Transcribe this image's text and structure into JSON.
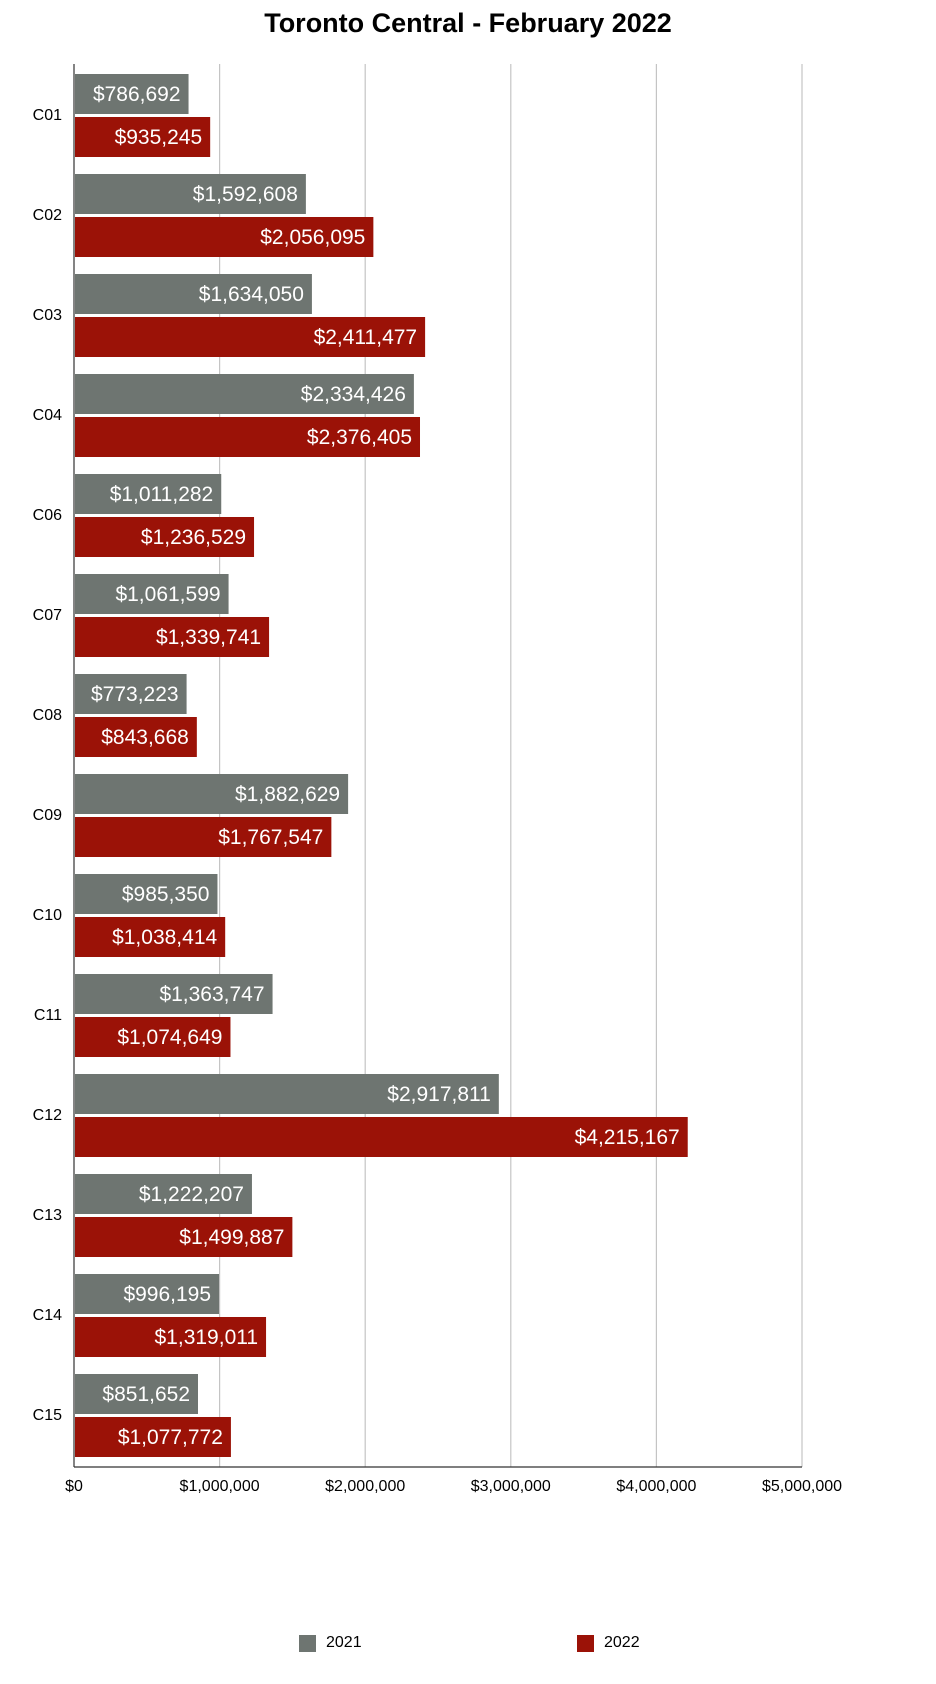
{
  "chart_data": {
    "type": "bar",
    "orientation": "horizontal",
    "title": "Toronto Central - February 2022",
    "xlabel": "",
    "ylabel": "",
    "xlim": [
      0,
      5000000
    ],
    "x_ticks": [
      "$0",
      "$1,000,000",
      "$2,000,000",
      "$3,000,000",
      "$4,000,000",
      "$5,000,000"
    ],
    "grid": true,
    "legend_position": "bottom",
    "categories": [
      "C01",
      "C02",
      "C03",
      "C04",
      "C06",
      "C07",
      "C08",
      "C09",
      "C10",
      "C11",
      "C12",
      "C13",
      "C14",
      "C15"
    ],
    "series": [
      {
        "name": "2021",
        "color": "#6e7571",
        "values": [
          786692,
          1592608,
          1634050,
          2334426,
          1011282,
          1061599,
          773223,
          1882629,
          985350,
          1363747,
          2917811,
          1222207,
          996195,
          851652
        ],
        "labels": [
          "$786,692",
          "$1,592,608",
          "$1,634,050",
          "$2,334,426",
          "$1,011,282",
          "$1,061,599",
          "$773,223",
          "$1,882,629",
          "$985,350",
          "$1,363,747",
          "$2,917,811",
          "$1,222,207",
          "$996,195",
          "$851,652"
        ]
      },
      {
        "name": "2022",
        "color": "#9b1207",
        "values": [
          935245,
          2056095,
          2411477,
          2376405,
          1236529,
          1339741,
          843668,
          1767547,
          1038414,
          1074649,
          4215167,
          1499887,
          1319011,
          1077772
        ],
        "labels": [
          "$935,245",
          "$2,056,095",
          "$2,411,477",
          "$2,376,405",
          "$1,236,529",
          "$1,339,741",
          "$843,668",
          "$1,767,547",
          "$1,038,414",
          "$1,074,649",
          "$4,215,167",
          "$1,499,887",
          "$1,319,011",
          "$1,077,772"
        ]
      }
    ]
  }
}
